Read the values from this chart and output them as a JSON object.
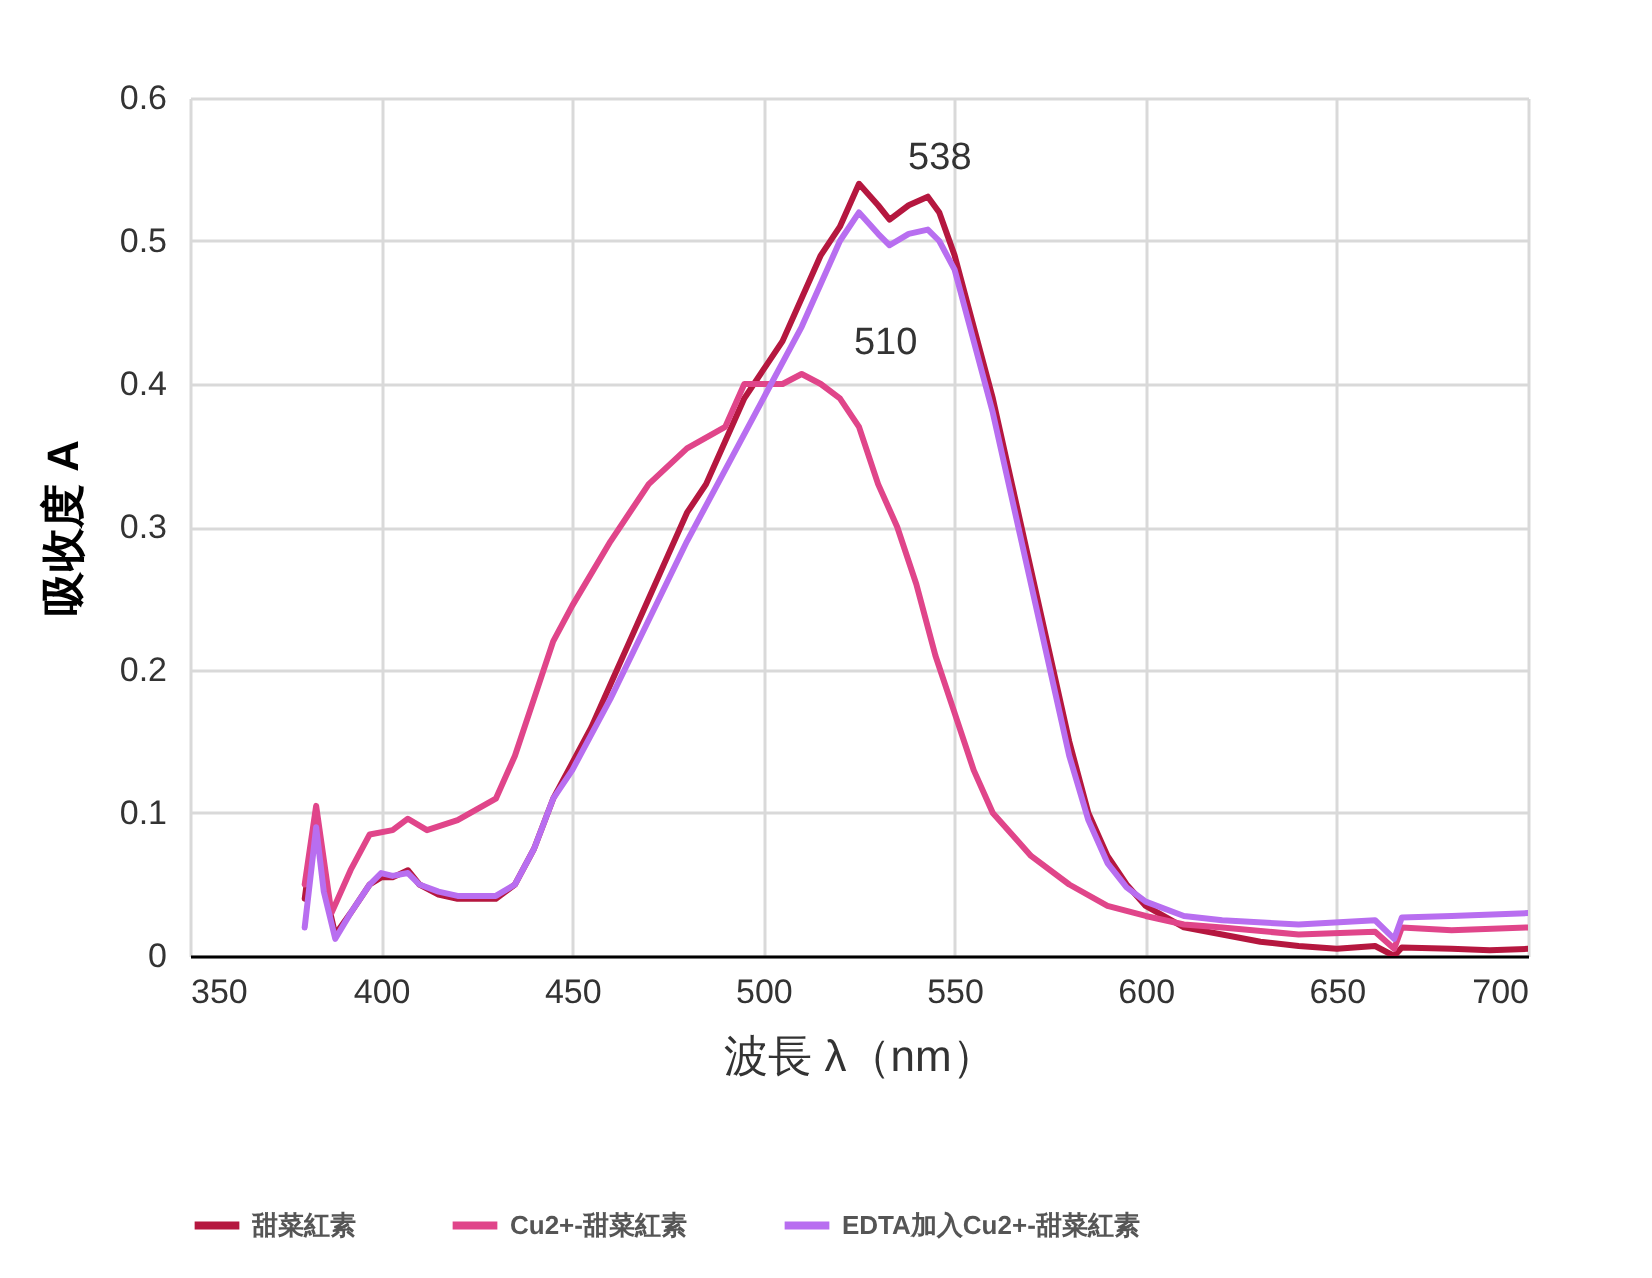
{
  "chart_data": {
    "type": "line",
    "xlabel": "波長 λ（nm）",
    "ylabel": "吸收度 A",
    "xlim": [
      350,
      700
    ],
    "xticks": [
      350,
      400,
      450,
      500,
      550,
      600,
      650,
      700
    ],
    "ylim": [
      0,
      0.6
    ],
    "yticks": [
      0,
      0.1,
      0.2,
      0.3,
      0.4,
      0.5,
      0.6
    ],
    "grid": true,
    "legend": "bottom",
    "marker": "none",
    "line_style": "solid",
    "annotations": [
      {
        "text": "538",
        "x": 543,
        "y": 0.531
      },
      {
        "text": "510",
        "x": 510,
        "y": 0.407
      }
    ],
    "series": [
      {
        "name": "甜菜紅素",
        "color": "#b5173f",
        "x": [
          380,
          383,
          385,
          388,
          392,
          397,
          400,
          403,
          407,
          410,
          415,
          420,
          425,
          430,
          435,
          440,
          445,
          450,
          455,
          460,
          465,
          470,
          475,
          480,
          485,
          490,
          495,
          500,
          505,
          510,
          515,
          520,
          525,
          530,
          533,
          538,
          543,
          546,
          550,
          555,
          560,
          565,
          570,
          575,
          580,
          585,
          590,
          595,
          600,
          610,
          620,
          630,
          640,
          650,
          660,
          665,
          667,
          680,
          690,
          700
        ],
        "values": [
          0.04,
          0.1,
          0.05,
          0.015,
          0.03,
          0.05,
          0.055,
          0.055,
          0.06,
          0.05,
          0.043,
          0.04,
          0.04,
          0.04,
          0.05,
          0.075,
          0.11,
          0.135,
          0.16,
          0.19,
          0.22,
          0.25,
          0.28,
          0.31,
          0.33,
          0.36,
          0.39,
          0.41,
          0.43,
          0.46,
          0.49,
          0.51,
          0.54,
          0.525,
          0.515,
          0.525,
          0.531,
          0.52,
          0.49,
          0.44,
          0.39,
          0.33,
          0.27,
          0.21,
          0.15,
          0.1,
          0.07,
          0.05,
          0.035,
          0.02,
          0.015,
          0.01,
          0.007,
          0.005,
          0.007,
          0,
          0.006,
          0.005,
          0.004,
          0.005
        ]
      },
      {
        "name": "Cu2+-甜菜紅素",
        "color": "#e0458a",
        "x": [
          380,
          383,
          387,
          392,
          397,
          403,
          407,
          412,
          420,
          430,
          435,
          440,
          445,
          450,
          460,
          470,
          480,
          490,
          495,
          500,
          505,
          510,
          515,
          520,
          525,
          530,
          535,
          540,
          545,
          550,
          555,
          560,
          570,
          580,
          590,
          600,
          610,
          620,
          640,
          660,
          665,
          667,
          680,
          700
        ],
        "values": [
          0.05,
          0.105,
          0.03,
          0.06,
          0.085,
          0.088,
          0.096,
          0.088,
          0.095,
          0.11,
          0.14,
          0.18,
          0.22,
          0.245,
          0.29,
          0.33,
          0.355,
          0.37,
          0.4,
          0.4,
          0.4,
          0.407,
          0.4,
          0.39,
          0.37,
          0.33,
          0.3,
          0.26,
          0.21,
          0.17,
          0.13,
          0.1,
          0.07,
          0.05,
          0.035,
          0.028,
          0.022,
          0.02,
          0.015,
          0.017,
          0.005,
          0.02,
          0.018,
          0.02
        ]
      },
      {
        "name": "EDTA加入Cu2+-甜菜紅素",
        "color": "#b86ef0",
        "x": [
          380,
          383,
          385,
          388,
          392,
          397,
          400,
          403,
          407,
          410,
          415,
          420,
          430,
          435,
          440,
          445,
          450,
          460,
          470,
          480,
          490,
          500,
          510,
          520,
          525,
          530,
          533,
          538,
          543,
          546,
          550,
          555,
          560,
          565,
          570,
          575,
          580,
          585,
          590,
          595,
          600,
          610,
          620,
          640,
          660,
          665,
          667,
          680,
          700
        ],
        "values": [
          0.02,
          0.09,
          0.045,
          0.012,
          0.03,
          0.05,
          0.058,
          0.056,
          0.058,
          0.05,
          0.045,
          0.042,
          0.042,
          0.05,
          0.075,
          0.11,
          0.13,
          0.18,
          0.235,
          0.29,
          0.34,
          0.39,
          0.44,
          0.5,
          0.52,
          0.505,
          0.497,
          0.505,
          0.508,
          0.5,
          0.48,
          0.43,
          0.38,
          0.32,
          0.26,
          0.2,
          0.14,
          0.095,
          0.065,
          0.048,
          0.038,
          0.028,
          0.025,
          0.022,
          0.025,
          0.012,
          0.027,
          0.028,
          0.03
        ]
      }
    ]
  }
}
